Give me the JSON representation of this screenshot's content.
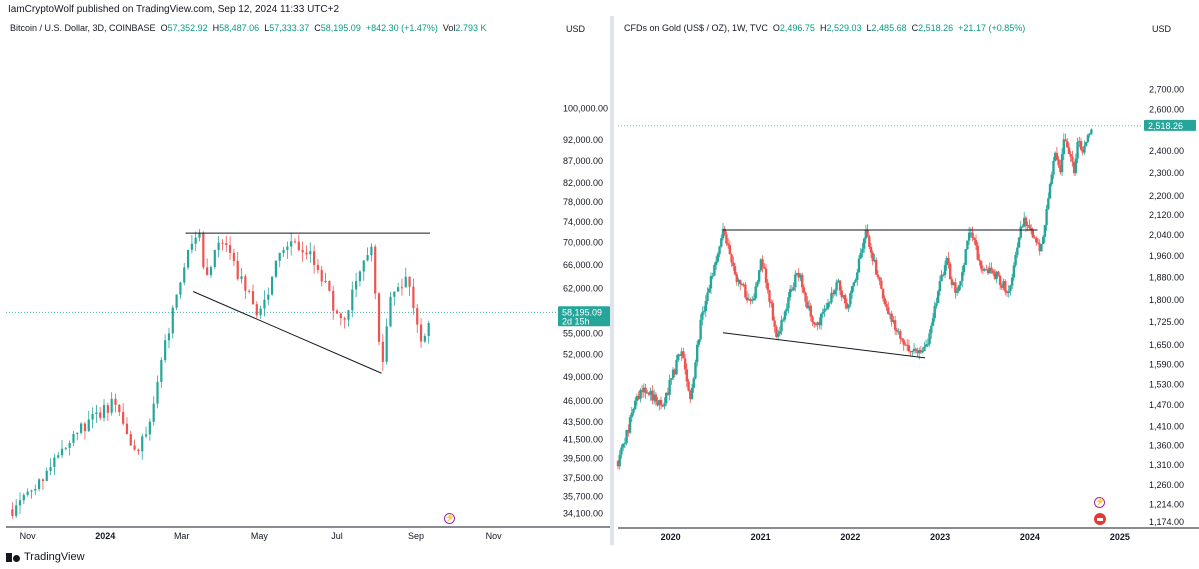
{
  "header": {
    "credit": "IamCryptoWolf published on TradingView.com, Sep 12, 2024 11:33 UTC+2"
  },
  "footer": {
    "brand": "TradingView"
  },
  "colors": {
    "up": "#26a69a",
    "down": "#ef5350",
    "accent": "#26a69a",
    "line": "#131722"
  },
  "icons": {
    "left_event": "lightning-icon",
    "right_event": "lightning-icon",
    "right_flag": "us-flag-icon",
    "footer_logo": "tradingview-logo-icon"
  },
  "chart_data": [
    {
      "type": "candlestick",
      "symbol": "Bitcoin / U.S. Dollar, 3D, COINBASE",
      "ohlc_labels": {
        "o": "O",
        "h": "H",
        "l": "L",
        "c": "C",
        "vol": "Vol"
      },
      "ohlc": {
        "o": "57,352.92",
        "h": "58,487.06",
        "l": "57,333.37",
        "c": "58,195.09",
        "change": "+842.30 (+1.47%)",
        "vol": "2.793 K"
      },
      "currency": "USD",
      "y_scale": "log",
      "ylim": [
        33000,
        118000
      ],
      "y_ticks": [
        "100,000.00",
        "92,000.00",
        "87,000.00",
        "82,000.00",
        "78,000.00",
        "74,000.00",
        "70,000.00",
        "66,000.00",
        "62,000.00",
        "55,000.00",
        "52,000.00",
        "49,000.00",
        "46,000.00",
        "43,500.00",
        "41,500.00",
        "39,500.00",
        "37,500.00",
        "35,700.00",
        "34,100.00"
      ],
      "x_ticks": [
        {
          "label": "Nov",
          "bold": false
        },
        {
          "label": "2024",
          "bold": true
        },
        {
          "label": "Mar",
          "bold": false
        },
        {
          "label": "May",
          "bold": false
        },
        {
          "label": "Jul",
          "bold": false
        },
        {
          "label": "Sep",
          "bold": false
        },
        {
          "label": "Nov",
          "bold": false
        }
      ],
      "last_price": "58,195.09",
      "countdown": "2d 15h",
      "trendlines": [
        {
          "from": [
            "2024-03-04",
            71800
          ],
          "to": [
            "2024-09-12",
            71800
          ]
        },
        {
          "from": [
            "2024-03-10",
            61500
          ],
          "to": [
            "2024-08-05",
            49500
          ]
        }
      ],
      "path_anchors": [
        [
          "2023-10-20",
          34500
        ],
        [
          "2023-11-10",
          37200
        ],
        [
          "2023-12-05",
          42000
        ],
        [
          "2023-12-20",
          43500
        ],
        [
          "2024-01-10",
          46200
        ],
        [
          "2024-01-23",
          39500
        ],
        [
          "2024-02-05",
          43000
        ],
        [
          "2024-02-15",
          52000
        ],
        [
          "2024-02-28",
          62000
        ],
        [
          "2024-03-05",
          67000
        ],
        [
          "2024-03-14",
          72500
        ],
        [
          "2024-03-20",
          64000
        ],
        [
          "2024-04-01",
          70500
        ],
        [
          "2024-04-15",
          64000
        ],
        [
          "2024-05-01",
          57500
        ],
        [
          "2024-05-15",
          66500
        ],
        [
          "2024-05-25",
          69500
        ],
        [
          "2024-06-10",
          68000
        ],
        [
          "2024-06-25",
          61000
        ],
        [
          "2024-07-05",
          56000
        ],
        [
          "2024-07-20",
          66500
        ],
        [
          "2024-07-28",
          69000
        ],
        [
          "2024-08-05",
          50000
        ],
        [
          "2024-08-12",
          60500
        ],
        [
          "2024-08-24",
          64200
        ],
        [
          "2024-09-01",
          58000
        ],
        [
          "2024-09-06",
          54000
        ],
        [
          "2024-09-12",
          58195
        ]
      ]
    },
    {
      "type": "candlestick",
      "symbol": "CFDs on Gold (US$ / OZ), 1W, TVC",
      "ohlc_labels": {
        "o": "O",
        "h": "H",
        "l": "L",
        "c": "C"
      },
      "ohlc": {
        "o": "2,496.75",
        "h": "2,529.03",
        "l": "2,485.68",
        "c": "2,518.26",
        "change": "+21.17 (+0.85%)"
      },
      "currency": "USD",
      "y_scale": "log",
      "ylim": [
        1160,
        2960
      ],
      "y_ticks": [
        "2,700.00",
        "2,600.00",
        "2,400.00",
        "2,300.00",
        "2,200.00",
        "2,120.00",
        "2,040.00",
        "1,960.00",
        "1,880.00",
        "1,800.00",
        "1,725.00",
        "1,650.00",
        "1,590.00",
        "1,530.00",
        "1,470.00",
        "1,410.00",
        "1,360.00",
        "1,310.00",
        "1,260.00",
        "1,214.00",
        "1,174.00"
      ],
      "x_ticks": [
        {
          "label": "2020",
          "bold": true
        },
        {
          "label": "2021",
          "bold": true
        },
        {
          "label": "2022",
          "bold": true
        },
        {
          "label": "2023",
          "bold": true
        },
        {
          "label": "2024",
          "bold": true
        },
        {
          "label": "2025",
          "bold": true
        }
      ],
      "last_price": "2,518.26",
      "trendlines": [
        {
          "from": [
            "2020-08-01",
            2060
          ],
          "to": [
            "2024-02-01",
            2060
          ]
        },
        {
          "from": [
            "2020-08-01",
            1690
          ],
          "to": [
            "2022-11-01",
            1610
          ]
        }
      ],
      "path_anchors": [
        [
          "2019-06-01",
          1320
        ],
        [
          "2019-09-01",
          1520
        ],
        [
          "2019-12-01",
          1470
        ],
        [
          "2020-02-15",
          1640
        ],
        [
          "2020-03-20",
          1480
        ],
        [
          "2020-05-01",
          1720
        ],
        [
          "2020-08-01",
          2060
        ],
        [
          "2020-09-15",
          1900
        ],
        [
          "2020-11-30",
          1780
        ],
        [
          "2021-01-06",
          1950
        ],
        [
          "2021-03-08",
          1680
        ],
        [
          "2021-06-01",
          1910
        ],
        [
          "2021-08-09",
          1700
        ],
        [
          "2021-11-15",
          1870
        ],
        [
          "2021-12-15",
          1760
        ],
        [
          "2022-03-08",
          2050
        ],
        [
          "2022-05-15",
          1800
        ],
        [
          "2022-07-20",
          1680
        ],
        [
          "2022-09-28",
          1620
        ],
        [
          "2022-11-01",
          1630
        ],
        [
          "2023-01-25",
          1950
        ],
        [
          "2023-03-08",
          1810
        ],
        [
          "2023-05-04",
          2060
        ],
        [
          "2023-06-15",
          1920
        ],
        [
          "2023-08-20",
          1890
        ],
        [
          "2023-10-06",
          1820
        ],
        [
          "2023-12-04",
          2100
        ],
        [
          "2024-02-14",
          1990
        ],
        [
          "2024-04-12",
          2380
        ],
        [
          "2024-05-02",
          2290
        ],
        [
          "2024-05-20",
          2450
        ],
        [
          "2024-06-28",
          2310
        ],
        [
          "2024-07-17",
          2480
        ],
        [
          "2024-08-02",
          2390
        ],
        [
          "2024-09-06",
          2500
        ],
        [
          "2024-09-12",
          2518
        ]
      ]
    }
  ]
}
